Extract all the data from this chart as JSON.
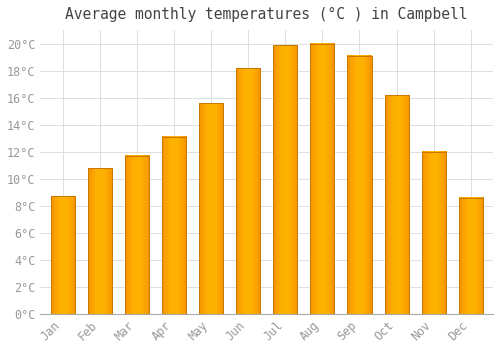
{
  "title": "Average monthly temperatures (°C ) in Campbell",
  "months": [
    "Jan",
    "Feb",
    "Mar",
    "Apr",
    "May",
    "Jun",
    "Jul",
    "Aug",
    "Sep",
    "Oct",
    "Nov",
    "Dec"
  ],
  "temperatures": [
    8.7,
    10.8,
    11.7,
    13.1,
    15.6,
    18.2,
    19.9,
    20.0,
    19.1,
    16.2,
    12.0,
    8.6
  ],
  "bar_color_center": "#FFB300",
  "bar_color_edge": "#F59200",
  "bar_border_color": "#C87800",
  "background_color": "#FFFFFF",
  "plot_bg_color": "#FFFFFF",
  "grid_color": "#DDDDDD",
  "title_color": "#444444",
  "tick_label_color": "#999999",
  "ylim": [
    0,
    21
  ],
  "yticks": [
    0,
    2,
    4,
    6,
    8,
    10,
    12,
    14,
    16,
    18,
    20
  ],
  "title_fontsize": 10.5,
  "tick_fontsize": 8.5,
  "bar_width": 0.65
}
